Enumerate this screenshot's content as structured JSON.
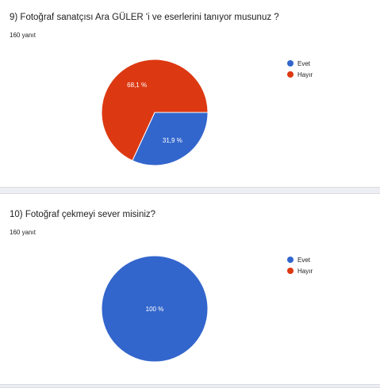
{
  "chart_data": [
    {
      "type": "pie",
      "title": "9) Fotoğraf sanatçısı Ara GÜLER 'i ve eserlerini tanıyor musunuz ?",
      "subtitle": "160 yanıt",
      "categories": [
        "Evet",
        "Hayır"
      ],
      "values": [
        31.9,
        68.1
      ],
      "data_labels": [
        "31,9 %",
        "68,1 %"
      ],
      "colors": [
        "#3366cc",
        "#dc3912"
      ],
      "legend_position": "right"
    },
    {
      "type": "pie",
      "title": "10) Fotoğraf çekmeyi sever misiniz?",
      "subtitle": "160 yanıt",
      "categories": [
        "Evet",
        "Hayır"
      ],
      "values": [
        100,
        0
      ],
      "data_labels": [
        "100 %",
        ""
      ],
      "colors": [
        "#3366cc",
        "#dc3912"
      ],
      "legend_position": "right"
    }
  ]
}
